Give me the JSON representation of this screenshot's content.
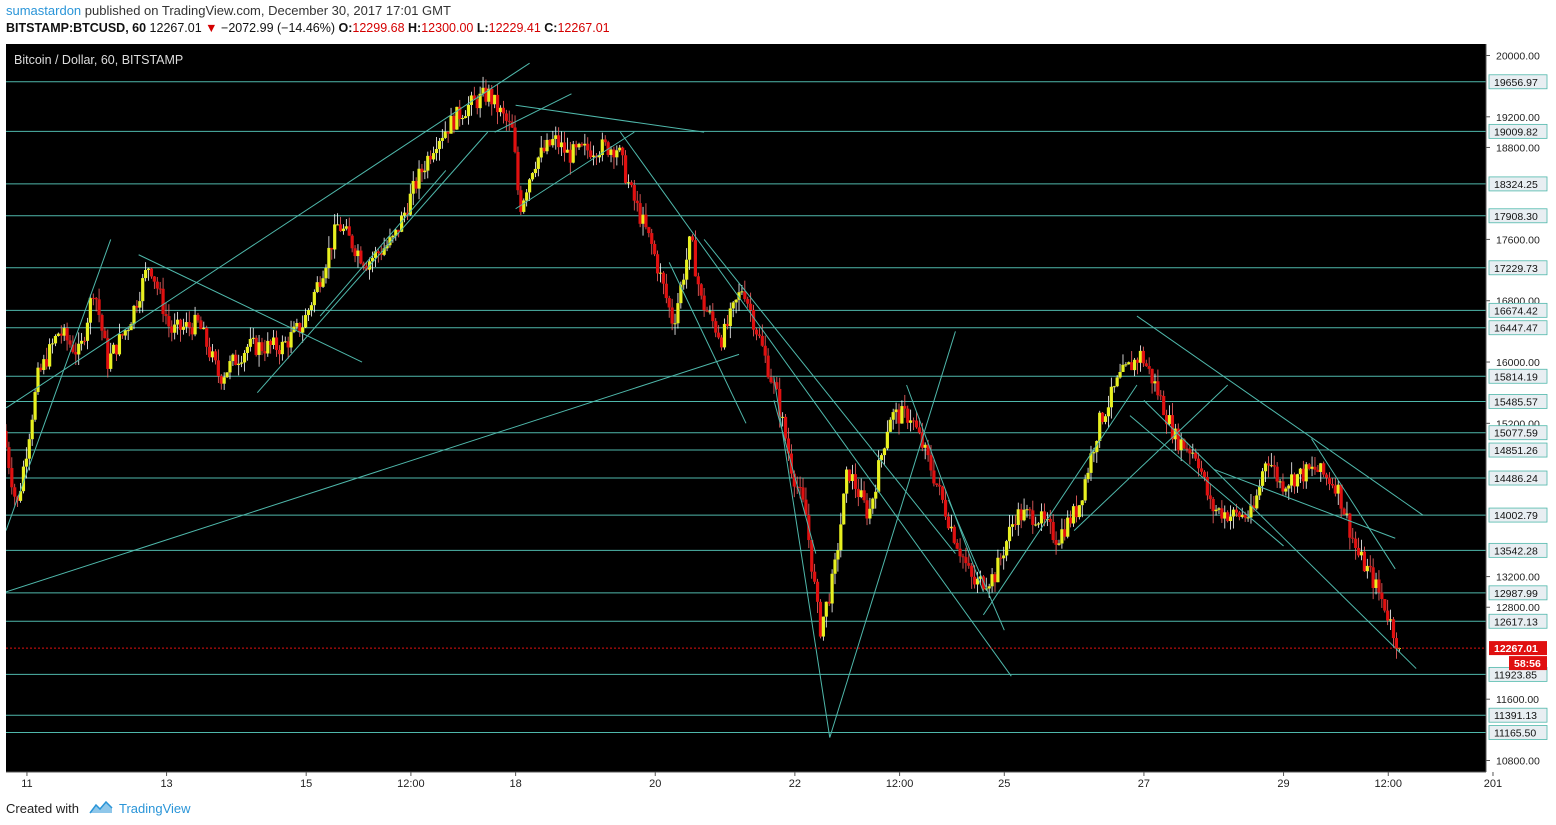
{
  "header": {
    "author": "sumastardon",
    "published_text": "published on TradingView.com, December 30, 2017 17:01 GMT",
    "symbol": "BITSTAMP:BTCUSD, 60",
    "last": "12267.01",
    "change": "−2072.99 (−14.46%)",
    "o_label": "O:",
    "o_value": "12299.68",
    "h_label": "H:",
    "h_value": "12300.00",
    "l_label": "L:",
    "l_value": "12229.41",
    "c_label": "C:",
    "c_value": "12267.01"
  },
  "footer": {
    "created_with": "Created with",
    "brand": "TradingView"
  },
  "colors": {
    "background": "#000000",
    "up": "#e8f020",
    "down": "#e01010",
    "line": "#4fb8ab",
    "price_label_bg": "#e8eef2",
    "current": "#e01010"
  },
  "chart_data": {
    "type": "candlestick",
    "title": "Bitcoin / Dollar, 60, BITSTAMP",
    "ylim": [
      10650,
      20150
    ],
    "xlim": [
      0,
      21.2
    ],
    "x_ticks": [
      {
        "label": "11",
        "x": 0.3
      },
      {
        "label": "13",
        "x": 2.3
      },
      {
        "label": "15",
        "x": 4.3
      },
      {
        "label": "12:00",
        "x": 5.8
      },
      {
        "label": "18",
        "x": 7.3
      },
      {
        "label": "20",
        "x": 9.3
      },
      {
        "label": "22",
        "x": 11.3
      },
      {
        "label": "12:00",
        "x": 12.8
      },
      {
        "label": "25",
        "x": 14.3
      },
      {
        "label": "27",
        "x": 16.3
      },
      {
        "label": "29",
        "x": 18.3
      },
      {
        "label": "12:00",
        "x": 19.8
      },
      {
        "label": "201",
        "x": 21.3
      }
    ],
    "y_ticks": [
      20000,
      19200,
      18800,
      17600,
      16800,
      16000,
      15200,
      13200,
      12800,
      11600,
      10800
    ],
    "horizontal_levels": [
      19656.97,
      19009.82,
      18324.25,
      17908.3,
      17229.73,
      16674.42,
      16447.47,
      15814.19,
      15485.57,
      15077.59,
      14851.26,
      14486.24,
      14002.79,
      13542.28,
      12987.99,
      12617.13,
      11923.85,
      11391.13,
      11165.5
    ],
    "current_price": "12267.01",
    "countdown": "58:56",
    "anchors": [
      [
        0.0,
        15100
      ],
      [
        0.2,
        14100
      ],
      [
        0.5,
        15800
      ],
      [
        0.8,
        16400
      ],
      [
        1.1,
        16100
      ],
      [
        1.3,
        17000
      ],
      [
        1.5,
        16000
      ],
      [
        1.8,
        16500
      ],
      [
        2.1,
        17300
      ],
      [
        2.4,
        16400
      ],
      [
        2.8,
        16500
      ],
      [
        3.1,
        15800
      ],
      [
        3.5,
        16200
      ],
      [
        3.7,
        16200
      ],
      [
        4.0,
        16200
      ],
      [
        4.3,
        16500
      ],
      [
        4.5,
        17000
      ],
      [
        4.8,
        17800
      ],
      [
        5.2,
        17300
      ],
      [
        5.6,
        17600
      ],
      [
        5.9,
        18300
      ],
      [
        6.2,
        18900
      ],
      [
        6.6,
        19300
      ],
      [
        6.95,
        19500
      ],
      [
        7.3,
        19000
      ],
      [
        7.4,
        18000
      ],
      [
        7.6,
        18600
      ],
      [
        7.9,
        18900
      ],
      [
        8.1,
        18700
      ],
      [
        8.5,
        18800
      ],
      [
        8.8,
        18800
      ],
      [
        9.0,
        18200
      ],
      [
        9.3,
        17500
      ],
      [
        9.6,
        16500
      ],
      [
        9.85,
        17600
      ],
      [
        10.0,
        16800
      ],
      [
        10.3,
        16300
      ],
      [
        10.6,
        17000
      ],
      [
        10.9,
        16100
      ],
      [
        11.1,
        15500
      ],
      [
        11.3,
        14600
      ],
      [
        11.5,
        14000
      ],
      [
        11.7,
        12500
      ],
      [
        11.9,
        13200
      ],
      [
        12.1,
        14600
      ],
      [
        12.4,
        14000
      ],
      [
        12.7,
        15300
      ],
      [
        13.0,
        15300
      ],
      [
        13.3,
        14600
      ],
      [
        13.6,
        13800
      ],
      [
        13.9,
        13100
      ],
      [
        14.2,
        13200
      ],
      [
        14.5,
        14000
      ],
      [
        14.8,
        14000
      ],
      [
        15.1,
        13700
      ],
      [
        15.4,
        14100
      ],
      [
        15.7,
        15200
      ],
      [
        16.0,
        15800
      ],
      [
        16.3,
        16100
      ],
      [
        16.5,
        15700
      ],
      [
        16.8,
        15000
      ],
      [
        17.1,
        14800
      ],
      [
        17.3,
        14100
      ],
      [
        17.6,
        14000
      ],
      [
        17.9,
        14000
      ],
      [
        18.1,
        14800
      ],
      [
        18.3,
        14400
      ],
      [
        18.5,
        14500
      ],
      [
        18.8,
        14600
      ],
      [
        19.1,
        14400
      ],
      [
        19.4,
        13500
      ],
      [
        19.6,
        13200
      ],
      [
        19.8,
        12800
      ],
      [
        20.0,
        12267
      ]
    ],
    "trend_lines": [
      [
        [
          0.0,
          15400
        ],
        [
          7.5,
          19900
        ]
      ],
      [
        [
          0.0,
          13000
        ],
        [
          10.5,
          16100
        ]
      ],
      [
        [
          7.3,
          19350
        ],
        [
          10.0,
          19000
        ]
      ],
      [
        [
          8.8,
          19000
        ],
        [
          14.4,
          11900
        ]
      ],
      [
        [
          10.0,
          17600
        ],
        [
          13.6,
          13500
        ]
      ],
      [
        [
          16.2,
          16600
        ],
        [
          20.3,
          14000
        ]
      ],
      [
        [
          16.3,
          15500
        ],
        [
          20.2,
          12000
        ]
      ],
      [
        [
          11.8,
          11100
        ],
        [
          13.6,
          16400
        ]
      ],
      [
        [
          11.8,
          11100
        ],
        [
          11.0,
          15800
        ]
      ],
      [
        [
          0.0,
          13800
        ],
        [
          1.5,
          17600
        ]
      ],
      [
        [
          1.9,
          17400
        ],
        [
          5.1,
          16000
        ]
      ],
      [
        [
          3.6,
          15600
        ],
        [
          6.9,
          19000
        ]
      ],
      [
        [
          4.5,
          16600
        ],
        [
          6.3,
          18500
        ]
      ],
      [
        [
          7.3,
          18000
        ],
        [
          9.0,
          19000
        ]
      ],
      [
        [
          7.0,
          19000
        ],
        [
          8.1,
          19500
        ]
      ],
      [
        [
          14.0,
          12700
        ],
        [
          16.2,
          15700
        ]
      ],
      [
        [
          15.3,
          13800
        ],
        [
          17.5,
          15700
        ]
      ],
      [
        [
          16.1,
          15300
        ],
        [
          18.3,
          13600
        ]
      ],
      [
        [
          17.3,
          14600
        ],
        [
          19.9,
          13700
        ]
      ],
      [
        [
          18.7,
          15000
        ],
        [
          19.9,
          13300
        ]
      ],
      [
        [
          12.9,
          15700
        ],
        [
          14.0,
          13000
        ]
      ],
      [
        [
          13.5,
          14200
        ],
        [
          14.3,
          12500
        ]
      ],
      [
        [
          9.5,
          17300
        ],
        [
          10.6,
          15200
        ]
      ],
      [
        [
          11.0,
          15500
        ],
        [
          11.6,
          13500
        ]
      ]
    ]
  }
}
